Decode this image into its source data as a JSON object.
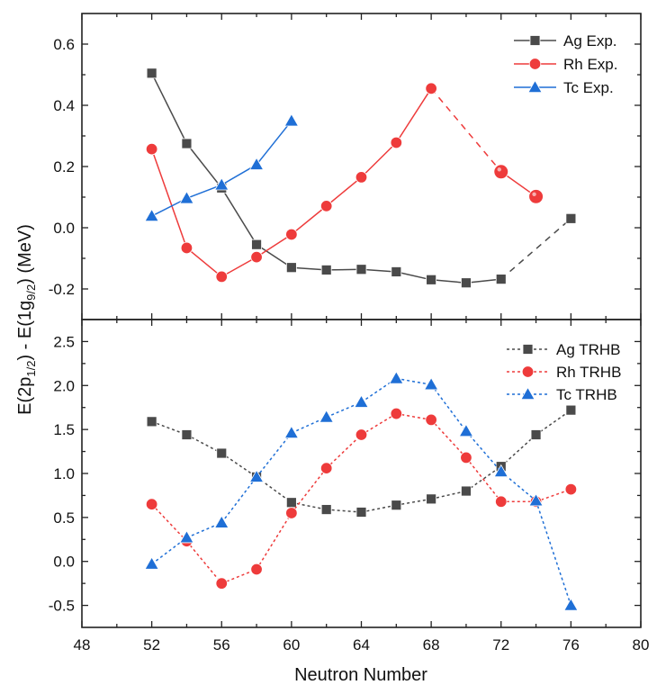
{
  "chart_data": {
    "type": "line",
    "xlabel": "Neutron Number",
    "ylabel": "E(2p1/2) - E(1g9/2) (MeV)",
    "ylabel_parts": {
      "a": "E(2p",
      "a_sub": "1/2",
      "b": ") - E(1g",
      "b_sub": "9/2",
      "c": ") (MeV)"
    },
    "xlim": [
      48,
      80
    ],
    "x_ticks": [
      48,
      52,
      56,
      60,
      64,
      68,
      72,
      76,
      80
    ],
    "x_tick_labels": [
      "48",
      "52",
      "56",
      "60",
      "64",
      "68",
      "72",
      "76",
      "80"
    ],
    "shared_x": true,
    "panels": [
      {
        "name": "experiment",
        "ylim": [
          -0.3,
          0.7
        ],
        "y_ticks": [
          -0.2,
          0.0,
          0.2,
          0.4,
          0.6
        ],
        "y_tick_labels": [
          "-0.2",
          "0.0",
          "0.2",
          "0.4",
          "0.6"
        ],
        "grid": false,
        "legend": "top-right",
        "series": [
          {
            "name": "Ag Exp.",
            "color": "#4a4a4a",
            "marker": "square",
            "line_style": "solid",
            "x": [
              52,
              54,
              56,
              58,
              60,
              62,
              64,
              66,
              68,
              70,
              72,
              76
            ],
            "y": [
              0.505,
              0.275,
              0.13,
              -0.055,
              -0.13,
              -0.138,
              -0.136,
              -0.144,
              -0.17,
              -0.18,
              -0.168,
              0.03
            ],
            "dashed_segments": [
              [
                72,
                76
              ]
            ]
          },
          {
            "name": "Rh Exp.",
            "color": "#ee3b3b",
            "marker": "circle",
            "line_style": "solid",
            "x": [
              52,
              54,
              56,
              58,
              60,
              62,
              64,
              66,
              68,
              72,
              74
            ],
            "y": [
              0.257,
              -0.066,
              -0.16,
              -0.096,
              -0.022,
              0.071,
              0.165,
              0.278,
              0.455,
              0.183,
              0.102
            ],
            "dashed_segments": [
              [
                68,
                72
              ]
            ],
            "highlighted_points": [
              72,
              74
            ]
          },
          {
            "name": "Tc Exp.",
            "color": "#1f6fd6",
            "marker": "triangle",
            "line_style": "solid",
            "x": [
              52,
              54,
              56,
              58,
              60
            ],
            "y": [
              0.038,
              0.096,
              0.14,
              0.206,
              0.349
            ],
            "dashed_segments": []
          }
        ]
      },
      {
        "name": "theory",
        "ylim": [
          -0.75,
          2.75
        ],
        "y_ticks": [
          -0.5,
          0.0,
          0.5,
          1.0,
          1.5,
          2.0,
          2.5
        ],
        "y_tick_labels": [
          "-0.5",
          "0.0",
          "0.5",
          "1.0",
          "1.5",
          "2.0",
          "2.5"
        ],
        "grid": false,
        "legend": "top-right",
        "series": [
          {
            "name": "Ag TRHB",
            "color": "#4a4a4a",
            "marker": "square",
            "line_style": "dotted",
            "x": [
              52,
              54,
              56,
              58,
              60,
              62,
              64,
              66,
              68,
              70,
              72,
              74,
              76
            ],
            "y": [
              1.59,
              1.44,
              1.23,
              0.96,
              0.67,
              0.59,
              0.56,
              0.64,
              0.71,
              0.8,
              1.08,
              1.44,
              1.72
            ]
          },
          {
            "name": "Rh TRHB",
            "color": "#ee3b3b",
            "marker": "circle",
            "line_style": "dotted",
            "x": [
              52,
              54,
              56,
              58,
              60,
              62,
              64,
              66,
              68,
              70,
              72,
              74,
              76
            ],
            "y": [
              0.65,
              0.23,
              -0.25,
              -0.09,
              0.55,
              1.06,
              1.44,
              1.68,
              1.61,
              1.18,
              0.68,
              0.68,
              0.82
            ]
          },
          {
            "name": "Tc TRHB",
            "color": "#1f6fd6",
            "marker": "triangle",
            "line_style": "dotted",
            "x": [
              52,
              54,
              56,
              58,
              60,
              62,
              64,
              66,
              68,
              70,
              72,
              74,
              76
            ],
            "y": [
              -0.03,
              0.27,
              0.44,
              0.96,
              1.46,
              1.64,
              1.81,
              2.08,
              2.01,
              1.48,
              1.02,
              0.69,
              -0.5
            ]
          }
        ]
      }
    ]
  }
}
